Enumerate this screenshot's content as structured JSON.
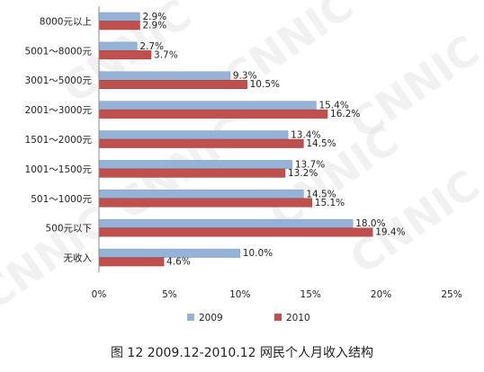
{
  "chart_data": {
    "type": "bar",
    "orientation": "horizontal",
    "categories": [
      "8000元以上",
      "5001～8000元",
      "3001～5000元",
      "2001～3000元",
      "1501～2000元",
      "1001～1500元",
      "501～1000元",
      "500元以下",
      "无收入"
    ],
    "series": [
      {
        "name": "2009",
        "color": "#95b3d7",
        "values": [
          2.9,
          2.7,
          9.3,
          15.4,
          13.4,
          13.7,
          14.5,
          18.0,
          10.0
        ],
        "labels": [
          "2.9%",
          "2.7%",
          "9.3%",
          "15.4%",
          "13.4%",
          "13.7%",
          "14.5%",
          "18.0%",
          "10.0%"
        ]
      },
      {
        "name": "2010",
        "color": "#c0504d",
        "values": [
          2.9,
          3.7,
          10.5,
          16.2,
          14.5,
          13.2,
          15.1,
          19.4,
          4.6
        ],
        "labels": [
          "2.9%",
          "3.7%",
          "10.5%",
          "16.2%",
          "14.5%",
          "13.2%",
          "15.1%",
          "19.4%",
          "4.6%"
        ]
      }
    ],
    "xlim": [
      0,
      25
    ],
    "xticks": [
      0,
      5,
      10,
      15,
      20,
      25
    ],
    "xtick_labels": [
      "0%",
      "5%",
      "10%",
      "15%",
      "20%",
      "25%"
    ],
    "grid": false,
    "legend_position": "bottom",
    "title": "",
    "xlabel": "",
    "ylabel": ""
  },
  "caption": "图 12 2009.12-2010.12 网民个人月收入结构",
  "watermark": "CNNIC"
}
